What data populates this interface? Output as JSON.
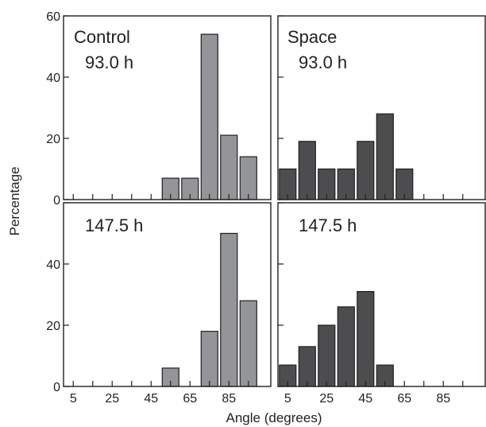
{
  "figure": {
    "xlabel": "Angle (degrees)",
    "ylabel": "Percentage"
  },
  "colors": {
    "control_bar": "#939598",
    "space_bar": "#4d4d4f",
    "axis": "#231f20",
    "background": "#ffffff"
  },
  "chart_data": [
    {
      "type": "bar",
      "group": "Control",
      "time": "93.0 h",
      "title_lines": [
        "Control",
        "93.0 h"
      ],
      "x": [
        5,
        15,
        25,
        35,
        45,
        55,
        65,
        75,
        85,
        95
      ],
      "values": [
        0,
        0,
        0,
        0,
        0,
        7,
        7,
        54,
        21,
        14
      ],
      "xticks": [
        "5",
        "25",
        "45",
        "65",
        "85"
      ],
      "yticks": [
        "0",
        "20",
        "40",
        "60"
      ],
      "ylim": [
        0,
        60
      ],
      "color": "#939598"
    },
    {
      "type": "bar",
      "group": "Space",
      "time": "93.0 h",
      "title_lines": [
        "Space",
        "93.0 h"
      ],
      "x": [
        5,
        15,
        25,
        35,
        45,
        55,
        65,
        75,
        85,
        95
      ],
      "values": [
        10,
        19,
        10,
        10,
        19,
        28,
        10,
        0,
        0,
        0
      ],
      "xticks": [
        "5",
        "25",
        "45",
        "65",
        "85"
      ],
      "yticks": [
        "0",
        "20",
        "40",
        "60"
      ],
      "ylim": [
        0,
        60
      ],
      "color": "#4d4d4f"
    },
    {
      "type": "bar",
      "group": "Control",
      "time": "147.5 h",
      "title_lines": [
        "147.5 h"
      ],
      "x": [
        5,
        15,
        25,
        35,
        45,
        55,
        65,
        75,
        85,
        95
      ],
      "values": [
        0,
        0,
        0,
        0,
        0,
        6,
        0,
        18,
        50,
        28
      ],
      "xticks": [
        "5",
        "25",
        "45",
        "65",
        "85"
      ],
      "yticks": [
        "0",
        "20",
        "40"
      ],
      "ylim": [
        0,
        60
      ],
      "color": "#939598"
    },
    {
      "type": "bar",
      "group": "Space",
      "time": "147.5 h",
      "title_lines": [
        "147.5 h"
      ],
      "x": [
        5,
        15,
        25,
        35,
        45,
        55,
        65,
        75,
        85,
        95
      ],
      "values": [
        7,
        13,
        20,
        26,
        31,
        7,
        0,
        0,
        0,
        0
      ],
      "xticks": [
        "5",
        "25",
        "45",
        "65",
        "85"
      ],
      "yticks": [
        "0",
        "20",
        "40"
      ],
      "ylim": [
        0,
        60
      ],
      "color": "#4d4d4f"
    }
  ]
}
